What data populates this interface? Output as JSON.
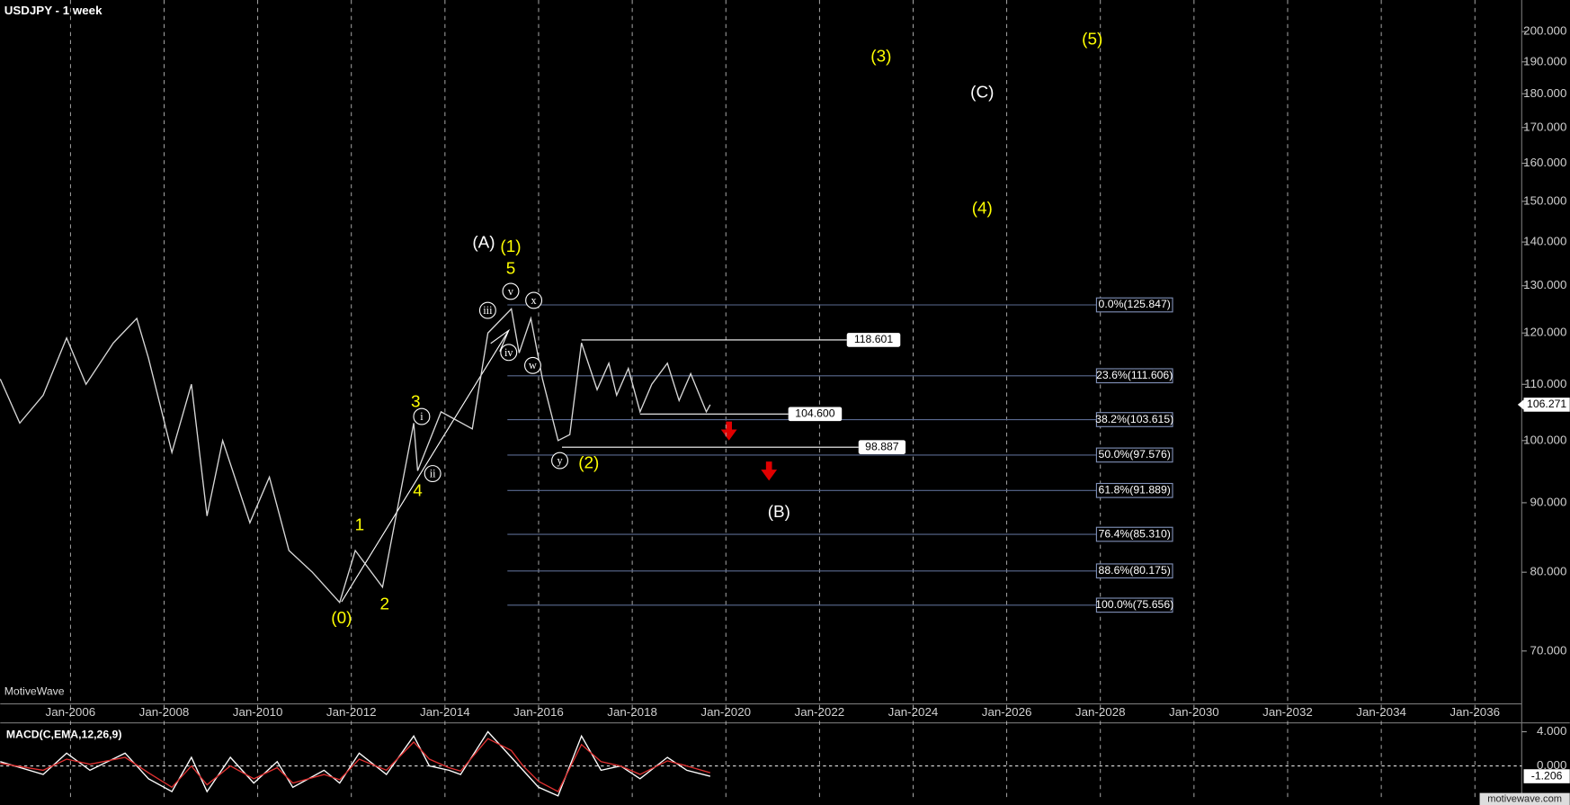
{
  "chart_data": [
    {
      "type": "line",
      "title": "USDJPY - 1 week",
      "watermark": "MotiveWave",
      "color": "#d8d8d8",
      "log_scale": true,
      "grid": true,
      "x": [
        "2004-07",
        "2004-12",
        "2005-06",
        "2005-12",
        "2006-05",
        "2006-12",
        "2007-06",
        "2007-09",
        "2008-03",
        "2008-08",
        "2008-12",
        "2009-04",
        "2009-11",
        "2010-04",
        "2010-09",
        "2011-03",
        "2011-10",
        "2012-02",
        "2012-09",
        "2013-05",
        "2013-06",
        "2013-12",
        "2014-08",
        "2014-12",
        "2015-06",
        "2015-08",
        "2015-11",
        "2016-02",
        "2016-06",
        "2016-09",
        "2016-12",
        "2017-04",
        "2017-07",
        "2017-09",
        "2017-12",
        "2018-03",
        "2018-06",
        "2018-10",
        "2019-01",
        "2019-04",
        "2019-08",
        "2019-09"
      ],
      "values": [
        111,
        103,
        108,
        119,
        110,
        118,
        123,
        115,
        98,
        110,
        88,
        100,
        87,
        94,
        83,
        80,
        76,
        83,
        78,
        103,
        95,
        105,
        102,
        120,
        125,
        116,
        123,
        111,
        100,
        101,
        118,
        109,
        114,
        108,
        113,
        105,
        110,
        114,
        107,
        112,
        105,
        106.271
      ],
      "xlim": [
        "2004-07",
        "2037-01"
      ],
      "xticks": [
        {
          "value": "2006-01",
          "label": "Jan-2006"
        },
        {
          "value": "2008-01",
          "label": "Jan-2008"
        },
        {
          "value": "2010-01",
          "label": "Jan-2010"
        },
        {
          "value": "2012-01",
          "label": "Jan-2012"
        },
        {
          "value": "2014-01",
          "label": "Jan-2014"
        },
        {
          "value": "2016-01",
          "label": "Jan-2016"
        },
        {
          "value": "2018-01",
          "label": "Jan-2018"
        },
        {
          "value": "2020-01",
          "label": "Jan-2020"
        },
        {
          "value": "2022-01",
          "label": "Jan-2022"
        },
        {
          "value": "2024-01",
          "label": "Jan-2024"
        },
        {
          "value": "2026-01",
          "label": "Jan-2026"
        },
        {
          "value": "2028-01",
          "label": "Jan-2028"
        },
        {
          "value": "2030-01",
          "label": "Jan-2030"
        },
        {
          "value": "2032-01",
          "label": "Jan-2032"
        },
        {
          "value": "2034-01",
          "label": "Jan-2034"
        },
        {
          "value": "2036-01",
          "label": "Jan-2036"
        }
      ],
      "ylim": [
        64,
        211
      ],
      "yticks": [
        {
          "value": 70,
          "label": "70.000"
        },
        {
          "value": 80,
          "label": "80.000"
        },
        {
          "value": 90,
          "label": "90.000"
        },
        {
          "value": 100,
          "label": "100.000"
        },
        {
          "value": 110,
          "label": "110.000"
        },
        {
          "value": 120,
          "label": "120.000"
        },
        {
          "value": 130,
          "label": "130.000"
        },
        {
          "value": 140,
          "label": "140.000"
        },
        {
          "value": 150,
          "label": "150.000"
        },
        {
          "value": 160,
          "label": "160.000"
        },
        {
          "value": 170,
          "label": "170.000"
        },
        {
          "value": 180,
          "label": "180.000"
        },
        {
          "value": 190,
          "label": "190.000"
        },
        {
          "value": 200,
          "label": "200.000"
        }
      ],
      "last_value": {
        "value": 106.271,
        "label": "106.271"
      },
      "fib_range": [
        "2015-05",
        "2027-12"
      ],
      "fib_levels": [
        {
          "value": 125.847,
          "label": "0.0%(125.847)"
        },
        {
          "value": 111.606,
          "label": "23.6%(111.606)"
        },
        {
          "value": 103.615,
          "label": "38.2%(103.615)"
        },
        {
          "value": 97.576,
          "label": "50.0%(97.576)"
        },
        {
          "value": 91.889,
          "label": "61.8%(91.889)"
        },
        {
          "value": 85.31,
          "label": "76.4%(85.310)"
        },
        {
          "value": 80.175,
          "label": "88.6%(80.175)"
        },
        {
          "value": 75.656,
          "label": "100.0%(75.656)"
        }
      ],
      "price_lines": [
        {
          "value": 118.601,
          "label": "118.601",
          "start": "2016-12",
          "end": "2022-08"
        },
        {
          "value": 104.6,
          "label": "104.600",
          "start": "2018-03",
          "end": "2021-05"
        },
        {
          "value": 98.887,
          "label": "98.887",
          "start": "2016-07",
          "end": "2022-11"
        }
      ],
      "wave_labels": [
        {
          "text": "(0)",
          "color": "#ffff00"
        },
        {
          "text": "1",
          "color": "#ffff00"
        },
        {
          "text": "2",
          "color": "#ffff00"
        },
        {
          "text": "3",
          "color": "#ffff00"
        },
        {
          "text": "4",
          "color": "#ffff00"
        },
        {
          "text": "5",
          "color": "#ffff00"
        },
        {
          "text": "(1)",
          "color": "#ffff00"
        },
        {
          "text": "(2)",
          "color": "#ffff00"
        },
        {
          "text": "(3)",
          "color": "#ffff00"
        },
        {
          "text": "(4)",
          "color": "#ffff00"
        },
        {
          "text": "(5)",
          "color": "#ffff00"
        },
        {
          "text": "(A)",
          "color": "#ffffff"
        },
        {
          "text": "(B)",
          "color": "#ffffff"
        },
        {
          "text": "(C)",
          "color": "#ffffff"
        },
        {
          "text": "i",
          "color": "#ffffff",
          "circled": true
        },
        {
          "text": "ii",
          "color": "#ffffff",
          "circled": true
        },
        {
          "text": "iii",
          "color": "#ffffff",
          "circled": true
        },
        {
          "text": "iv",
          "color": "#ffffff",
          "circled": true
        },
        {
          "text": "v",
          "color": "#ffffff",
          "circled": true
        },
        {
          "text": "w",
          "color": "#ffffff",
          "circled": true
        },
        {
          "text": "x",
          "color": "#ffffff",
          "circled": true
        },
        {
          "text": "y",
          "color": "#ffffff",
          "circled": true
        }
      ]
    },
    {
      "type": "line",
      "title": "MACD(C,EMA,12,26,9)",
      "x": [
        "2004-07",
        "2005-06",
        "2005-12",
        "2006-06",
        "2007-03",
        "2007-09",
        "2008-03",
        "2008-08",
        "2008-12",
        "2009-06",
        "2009-12",
        "2010-06",
        "2010-10",
        "2011-06",
        "2011-10",
        "2012-03",
        "2012-10",
        "2013-05",
        "2013-09",
        "2014-02",
        "2014-05",
        "2014-12",
        "2015-06",
        "2015-09",
        "2016-01",
        "2016-06",
        "2016-12",
        "2017-05",
        "2017-10",
        "2018-03",
        "2018-10",
        "2019-03",
        "2019-09"
      ],
      "series": [
        {
          "color": "#ffffff",
          "values": [
            0.5,
            -1,
            1.5,
            -0.5,
            1.5,
            -1.5,
            -3,
            1,
            -3,
            1,
            -2,
            0.5,
            -2.5,
            -0.5,
            -2,
            1.5,
            -1,
            3.5,
            0,
            -0.5,
            -1,
            4,
            1,
            -0.5,
            -2.5,
            -3.5,
            3.5,
            -0.5,
            0,
            -1.5,
            1,
            -0.5,
            -1.206
          ]
        },
        {
          "color": "#e03030",
          "values": [
            0.3,
            -0.5,
            0.8,
            0.2,
            1,
            -0.8,
            -2.5,
            0,
            -2.2,
            0,
            -1.5,
            -0.2,
            -2,
            -1,
            -1.6,
            0.8,
            -0.5,
            2.8,
            0.8,
            -0.2,
            -0.6,
            3.2,
            1.8,
            0,
            -1.8,
            -3,
            2.5,
            0.5,
            0,
            -1,
            0.6,
            0,
            -0.8
          ]
        }
      ],
      "ylim": [
        -4.1,
        4.8
      ],
      "yticks": [
        {
          "value": 4,
          "label": "4.000"
        },
        {
          "value": 0,
          "label": "0.000"
        }
      ],
      "last_value": {
        "value": -1.206,
        "label": "-1.206"
      }
    }
  ],
  "footer": "motivewave.com"
}
